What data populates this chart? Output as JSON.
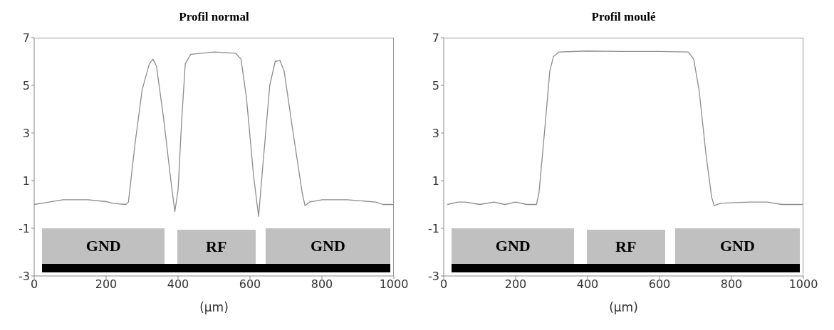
{
  "chart_data": [
    {
      "type": "line",
      "title": "Profil normal",
      "xlabel": "(μm)",
      "xlim": [
        0,
        1000
      ],
      "xticks": [
        0,
        200,
        400,
        600,
        800,
        1000
      ],
      "ylim": [
        -3,
        7
      ],
      "yticks": [
        -3,
        -1,
        1,
        3,
        5,
        7
      ],
      "grid": false,
      "legend": false,
      "marker": "none",
      "line_style": "solid",
      "annotations": [
        "GND",
        "RF",
        "GND"
      ],
      "series": [
        {
          "color": "#8c8c8c",
          "x": [
            0,
            20,
            80,
            150,
            200,
            220,
            255,
            262,
            280,
            300,
            320,
            330,
            340,
            360,
            380,
            391,
            400,
            410,
            420,
            435,
            500,
            560,
            575,
            590,
            610,
            624,
            635,
            655,
            670,
            683,
            695,
            720,
            745,
            753,
            765,
            800,
            870,
            950,
            970,
            1000
          ],
          "values": [
            0.0,
            0.05,
            0.2,
            0.2,
            0.12,
            0.05,
            0.0,
            0.1,
            2.5,
            4.8,
            5.9,
            6.1,
            5.8,
            3.6,
            1.0,
            -0.3,
            0.6,
            3.5,
            5.9,
            6.3,
            6.4,
            6.35,
            6.1,
            4.5,
            1.2,
            -0.5,
            1.5,
            5.0,
            6.0,
            6.05,
            5.6,
            3.0,
            0.5,
            -0.05,
            0.1,
            0.2,
            0.2,
            0.1,
            0.0,
            0.0
          ]
        }
      ]
    },
    {
      "type": "line",
      "title": "Profil moulé",
      "xlabel": "(μm)",
      "xlim": [
        0,
        1000
      ],
      "xticks": [
        0,
        200,
        400,
        600,
        800,
        1000
      ],
      "ylim": [
        -3,
        7
      ],
      "yticks": [
        -3,
        -1,
        1,
        3,
        5,
        7
      ],
      "grid": false,
      "legend": false,
      "marker": "none",
      "line_style": "solid",
      "annotations": [
        "GND",
        "RF",
        "GND"
      ],
      "series": [
        {
          "color": "#8c8c8c",
          "x": [
            10,
            40,
            60,
            100,
            140,
            170,
            200,
            230,
            258,
            265,
            280,
            295,
            305,
            320,
            400,
            500,
            600,
            680,
            695,
            710,
            730,
            745,
            752,
            770,
            850,
            900,
            940,
            1000
          ],
          "values": [
            0.0,
            0.1,
            0.1,
            0.0,
            0.1,
            0.0,
            0.1,
            0.0,
            0.0,
            0.5,
            3.0,
            5.6,
            6.2,
            6.4,
            6.44,
            6.42,
            6.42,
            6.4,
            6.1,
            4.8,
            2.0,
            0.3,
            -0.05,
            0.05,
            0.1,
            0.1,
            0.0,
            0.0
          ]
        }
      ]
    }
  ]
}
